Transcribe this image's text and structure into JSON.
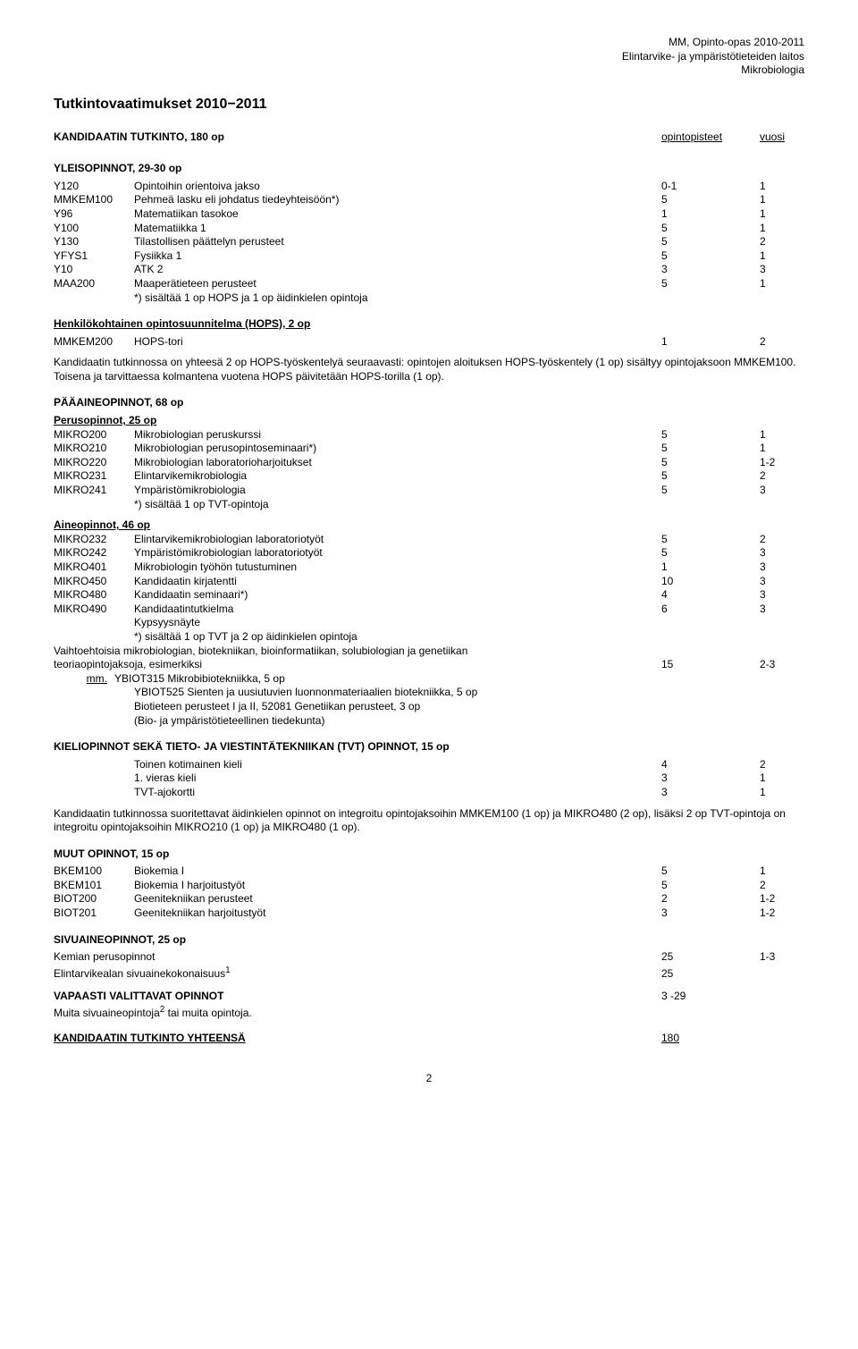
{
  "header": {
    "line1": "MM, Opinto-opas 2010-2011",
    "line2": "Elintarvike- ja ympäristötieteiden laitos",
    "line3": "Mikrobiologia"
  },
  "title": "Tutkintovaatimukset 2010−2011",
  "degree_row": {
    "label": "KANDIDAATIN TUTKINTO, 180 op",
    "col_pts": "opintopisteet",
    "col_yr": "vuosi"
  },
  "general": {
    "heading": "YLEISOPINNOT, 29-30 op",
    "rows": [
      {
        "code": "Y120",
        "label": "Opintoihin orientoiva jakso",
        "pts": "0-1",
        "yr": "1"
      },
      {
        "code": "MMKEM100",
        "label": "Pehmeä lasku eli johdatus tiedeyhteisöön*)",
        "pts": "5",
        "yr": "1"
      },
      {
        "code": "Y96",
        "label": "Matematiikan tasokoe",
        "pts": "1",
        "yr": "1"
      },
      {
        "code": "Y100",
        "label": "Matematiikka 1",
        "pts": "5",
        "yr": "1"
      },
      {
        "code": "Y130",
        "label": "Tilastollisen päättelyn perusteet",
        "pts": "5",
        "yr": "2"
      },
      {
        "code": "YFYS1",
        "label": "Fysiikka 1",
        "pts": "5",
        "yr": "1"
      },
      {
        "code": "Y10",
        "label": "ATK 2",
        "pts": "3",
        "yr": "3"
      },
      {
        "code": "MAA200",
        "label": "Maaperätieteen perusteet",
        "pts": "5",
        "yr": "1"
      }
    ],
    "note": "*) sisältää 1 op HOPS ja 1 op äidinkielen opintoja"
  },
  "hops": {
    "heading": "Henkilökohtainen opintosuunnitelma (HOPS), 2 op",
    "row": {
      "code": "MMKEM200",
      "label": "HOPS-tori",
      "pts": "1",
      "yr": "2"
    },
    "para": "Kandidaatin tutkinnossa on yhteesä 2 op HOPS-työskentelyä seuraavasti: opintojen aloituksen HOPS-työskentely (1 op) sisältyy opintojaksoon MMKEM100. Toisena ja tarvittaessa kolmantena vuotena HOPS päivitetään HOPS-torilla (1 op)."
  },
  "main_subj": {
    "heading": "PÄÄAINEOPINNOT, 68 op",
    "basic": {
      "heading": "Perusopinnot, 25 op",
      "rows": [
        {
          "code": "MIKRO200",
          "label": "Mikrobiologian peruskurssi",
          "pts": "5",
          "yr": "1"
        },
        {
          "code": "MIKRO210",
          "label": "Mikrobiologian perusopintoseminaari*)",
          "pts": "5",
          "yr": "1"
        },
        {
          "code": "MIKRO220",
          "label": "Mikrobiologian laboratorioharjoitukset",
          "pts": "5",
          "yr": "1-2"
        },
        {
          "code": "MIKRO231",
          "label": "Elintarvikemikrobiologia",
          "pts": "5",
          "yr": "2"
        },
        {
          "code": "MIKRO241",
          "label": "Ympäristömikrobiologia",
          "pts": "5",
          "yr": "3"
        }
      ],
      "note": "*) sisältää 1 op TVT-opintoja"
    },
    "subj": {
      "heading": "Aineopinnot, 46 op",
      "rows": [
        {
          "code": "MIKRO232",
          "label": "Elintarvikemikrobiologian laboratoriotyöt",
          "pts": "5",
          "yr": "2"
        },
        {
          "code": "MIKRO242",
          "label": "Ympäristömikrobiologian laboratoriotyöt",
          "pts": "5",
          "yr": "3"
        },
        {
          "code": "MIKRO401",
          "label": "Mikrobiologin työhön tutustuminen",
          "pts": "1",
          "yr": "3"
        },
        {
          "code": "MIKRO450",
          "label": "Kandidaatin kirjatentti",
          "pts": "10",
          "yr": "3"
        },
        {
          "code": "MIKRO480",
          "label": "Kandidaatin seminaari*)",
          "pts": "4",
          "yr": "3"
        },
        {
          "code": "MIKRO490",
          "label": "Kandidaatintutkielma",
          "pts": "6",
          "yr": "3"
        }
      ],
      "extra1": "Kypsyysnäyte",
      "extra2": "*) sisältää 1 op TVT ja 2 op äidinkielen opintoja",
      "vaihto_l1": "Vaihtoehtoisia mikrobiologian, biotekniikan, bioinformatiikan, solubiologian ja genetiikan",
      "vaihto_l2": "teoriaopintojaksoja, esimerkiksi",
      "vaihto_pts": "15",
      "vaihto_yr": "2-3",
      "mm_label": "mm.",
      "ex_lines": [
        "YBIOT315 Mikrobibiotekniikka, 5 op",
        "YBIOT525 Sienten ja uusiutuvien luonnonmateriaalien biotekniikka, 5 op",
        "Biotieteen perusteet I ja II, 52081 Genetiikan perusteet, 3 op",
        "(Bio- ja ympäristötieteellinen tiedekunta)"
      ]
    }
  },
  "lang": {
    "heading": "KIELIOPINNOT SEKÄ TIETO- JA VIESTINTÄTEKNIIKAN (TVT) OPINNOT, 15 op",
    "rows": [
      {
        "label": "Toinen kotimainen kieli",
        "pts": "4",
        "yr": "2"
      },
      {
        "label": "1. vieras kieli",
        "pts": "3",
        "yr": "1"
      },
      {
        "label": "TVT-ajokortti",
        "pts": "3",
        "yr": "1"
      }
    ],
    "para": "Kandidaatin tutkinnossa suoritettavat äidinkielen opinnot on integroitu opintojaksoihin MMKEM100 (1 op) ja MIKRO480 (2 op), lisäksi 2 op TVT-opintoja on integroitu opintojaksoihin MIKRO210 (1 op) ja MIKRO480 (1 op)."
  },
  "other": {
    "heading": "MUUT OPINNOT, 15 op",
    "rows": [
      {
        "code": "BKEM100",
        "label": "Biokemia I",
        "pts": "5",
        "yr": "1"
      },
      {
        "code": "BKEM101",
        "label": "Biokemia I harjoitustyöt",
        "pts": "5",
        "yr": "2"
      },
      {
        "code": "BIOT200",
        "label": "Geenitekniikan perusteet",
        "pts": "2",
        "yr": "1-2"
      },
      {
        "code": "BIOT201",
        "label": "Geenitekniikan harjoitustyöt",
        "pts": "3",
        "yr": "1-2"
      }
    ]
  },
  "minor": {
    "heading": "SIVUAINEOPINNOT, 25 op",
    "rows": [
      {
        "label": "Kemian perusopinnot",
        "pts": "25",
        "yr": "1-3"
      },
      {
        "label": "Elintarvikealan sivuainekokonaisuus",
        "sup": "1",
        "pts": "25",
        "yr": ""
      }
    ]
  },
  "free": {
    "heading": "VAPAASTI VALITTAVAT OPINNOT",
    "pts": "3 -29",
    "note_pre": "Muita sivuaineopintoja",
    "note_sup": "2",
    "note_post": " tai muita opintoja."
  },
  "total": {
    "label": "KANDIDAATIN TUTKINTO YHTEENSÄ",
    "pts": "180"
  },
  "page_number": "2"
}
